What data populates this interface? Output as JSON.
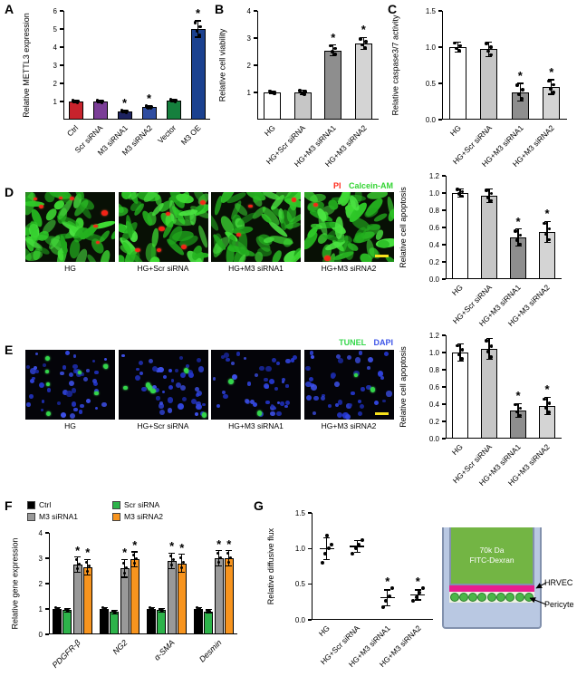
{
  "sig_symbol": "*",
  "panels": {
    "a": "A",
    "b": "B",
    "c": "C",
    "d": "D",
    "e": "E",
    "f": "F",
    "g": "G"
  },
  "chart_data": [
    {
      "id": "chartA",
      "type": "bar",
      "ylabel": "Relative METTL3 expression",
      "ylim": [
        0,
        6
      ],
      "yticks": [
        "1",
        "2",
        "3",
        "4",
        "5",
        "6"
      ],
      "categories": [
        "Ctrl",
        "Scr siRNA",
        "M3 siRNA1",
        "M3 siRNA2",
        "Vector",
        "M3 OE"
      ],
      "values": [
        1.0,
        1.0,
        0.45,
        0.68,
        1.05,
        5.0
      ],
      "errors": [
        0.07,
        0.07,
        0.06,
        0.07,
        0.07,
        0.45
      ],
      "sig": [
        false,
        false,
        true,
        true,
        false,
        true
      ],
      "colors": [
        "#c8232c",
        "#7b3e97",
        "#1d2360",
        "#2f4da0",
        "#157f3d",
        "#1b418f"
      ]
    },
    {
      "id": "chartB",
      "type": "bar",
      "ylabel": "Relative cell viability",
      "ylim": [
        0,
        4
      ],
      "yticks": [
        "1",
        "2",
        "3",
        "4"
      ],
      "categories": [
        "HG",
        "HG+Scr siRNA",
        "HG+M3 siRNA1",
        "HG+M3 siRNA2"
      ],
      "values": [
        1.0,
        1.0,
        2.55,
        2.8
      ],
      "errors": [
        0.06,
        0.08,
        0.2,
        0.22
      ],
      "sig": [
        false,
        false,
        true,
        true
      ],
      "colors": [
        "#ffffff",
        "#c6c6c6",
        "#8e8e8e",
        "#d4d4d4"
      ]
    },
    {
      "id": "chartC",
      "type": "bar",
      "ylabel": "Relative caspase3/7 activity",
      "ylim": [
        0,
        1.5
      ],
      "yticks": [
        "0.0",
        "0.5",
        "1.0",
        "1.5"
      ],
      "categories": [
        "HG",
        "HG+Scr siRNA",
        "HG+M3 siRNA1",
        "HG+M3 siRNA2"
      ],
      "values": [
        1.0,
        0.97,
        0.38,
        0.45
      ],
      "errors": [
        0.07,
        0.1,
        0.12,
        0.1
      ],
      "sig": [
        false,
        false,
        true,
        true
      ],
      "colors": [
        "#ffffff",
        "#c6c6c6",
        "#8e8e8e",
        "#d4d4d4"
      ]
    },
    {
      "id": "chartD",
      "type": "bar",
      "ylabel": "Relative cell apoptosis",
      "ylim": [
        0,
        1.2
      ],
      "yticks": [
        "0.0",
        "0.2",
        "0.4",
        "0.6",
        "0.8",
        "1.0",
        "1.2"
      ],
      "categories": [
        "HG",
        "HG+Scr siRNA",
        "HG+M3 siRNA1",
        "HG+M3 siRNA2"
      ],
      "values": [
        1.0,
        0.97,
        0.48,
        0.55
      ],
      "errors": [
        0.05,
        0.08,
        0.1,
        0.12
      ],
      "sig": [
        false,
        false,
        true,
        true
      ],
      "colors": [
        "#ffffff",
        "#c6c6c6",
        "#8e8e8e",
        "#d4d4d4"
      ]
    },
    {
      "id": "chartE",
      "type": "bar",
      "ylabel": "Relative cell apoptosis",
      "ylim": [
        0,
        1.2
      ],
      "yticks": [
        "0.0",
        "0.2",
        "0.4",
        "0.6",
        "0.8",
        "1.0",
        "1.2"
      ],
      "categories": [
        "HG",
        "HG+Scr siRNA",
        "HG+M3 siRNA1",
        "HG+M3 siRNA2"
      ],
      "values": [
        1.0,
        1.04,
        0.33,
        0.38
      ],
      "errors": [
        0.1,
        0.12,
        0.08,
        0.1
      ],
      "sig": [
        false,
        false,
        true,
        true
      ],
      "colors": [
        "#ffffff",
        "#c6c6c6",
        "#8e8e8e",
        "#d4d4d4"
      ]
    },
    {
      "id": "chartF",
      "type": "grouped-bar",
      "ylabel": "Relative gene expression",
      "ylim": [
        0,
        4
      ],
      "yticks": [
        "0",
        "1",
        "2",
        "3",
        "4"
      ],
      "categories": [
        "PDGFR-β",
        "NG2",
        "α-SMA",
        "Desmin"
      ],
      "italic_categories": true,
      "series": [
        {
          "name": "Ctrl",
          "color": "#000000",
          "values": [
            1.0,
            1.0,
            1.0,
            1.0
          ],
          "errors": [
            0.06,
            0.06,
            0.06,
            0.06
          ],
          "sig": [
            false,
            false,
            false,
            false
          ]
        },
        {
          "name": "Scr siRNA",
          "color": "#2db34a",
          "values": [
            0.95,
            0.88,
            0.95,
            0.9
          ],
          "errors": [
            0.07,
            0.07,
            0.07,
            0.07
          ],
          "sig": [
            false,
            false,
            false,
            false
          ]
        },
        {
          "name": "M3 siRNA1",
          "color": "#999999",
          "values": [
            2.75,
            2.6,
            2.9,
            3.0
          ],
          "errors": [
            0.3,
            0.35,
            0.3,
            0.3
          ],
          "sig": [
            true,
            true,
            true,
            true
          ]
        },
        {
          "name": "M3 siRNA2",
          "color": "#f7941e",
          "values": [
            2.65,
            2.95,
            2.8,
            3.0
          ],
          "errors": [
            0.3,
            0.3,
            0.35,
            0.3
          ],
          "sig": [
            true,
            true,
            true,
            true
          ]
        }
      ]
    },
    {
      "id": "chartG",
      "type": "scatter",
      "ylabel": "Relative diffusive flux",
      "ylim": [
        0,
        1.5
      ],
      "yticks": [
        "0.0",
        "0.5",
        "1.0",
        "1.5"
      ],
      "categories": [
        "HG",
        "HG+Scr siRNA",
        "HG+M3 siRNA1",
        "HG+M3 siRNA2"
      ],
      "points": [
        [
          0.8,
          0.93,
          1.0,
          1.05,
          1.18
        ],
        [
          0.93,
          1.0,
          1.06,
          1.12
        ],
        [
          0.18,
          0.27,
          0.33,
          0.45
        ],
        [
          0.27,
          0.32,
          0.38,
          0.44
        ]
      ],
      "means": [
        1.0,
        1.03,
        0.31,
        0.35
      ],
      "errors": [
        0.15,
        0.08,
        0.11,
        0.07
      ],
      "sig": [
        false,
        false,
        true,
        true
      ]
    }
  ],
  "panelD": {
    "legend": [
      {
        "text": "PI",
        "color": "#ff2b1c"
      },
      {
        "text": "Calcein-AM",
        "color": "#33d433"
      }
    ],
    "image_labels": [
      "HG",
      "HG+Scr siRNA",
      "HG+M3 siRNA1",
      "HG+M3 siRNA2"
    ],
    "pi_dot_counts": [
      7,
      6,
      3,
      2
    ]
  },
  "panelE": {
    "legend": [
      {
        "text": "TUNEL",
        "color": "#35d74b"
      },
      {
        "text": "DAPI",
        "color": "#3d55e8"
      }
    ],
    "image_labels": [
      "HG",
      "HG+Scr siRNA",
      "HG+M3 siRNA1",
      "HG+M3 siRNA2"
    ],
    "tunel_dot_counts": [
      8,
      7,
      2,
      2
    ]
  },
  "diagram": {
    "line1": "70k Da",
    "line2": "FITC-Dexran",
    "label_hrvec": "HRVEC",
    "label_pericyte": "Pericyte",
    "colors": {
      "beaker": "#b9c8e2",
      "chamber": "#73b544",
      "hrvec_layer": "#e81c8f",
      "pericyte": "#4cb648"
    }
  }
}
